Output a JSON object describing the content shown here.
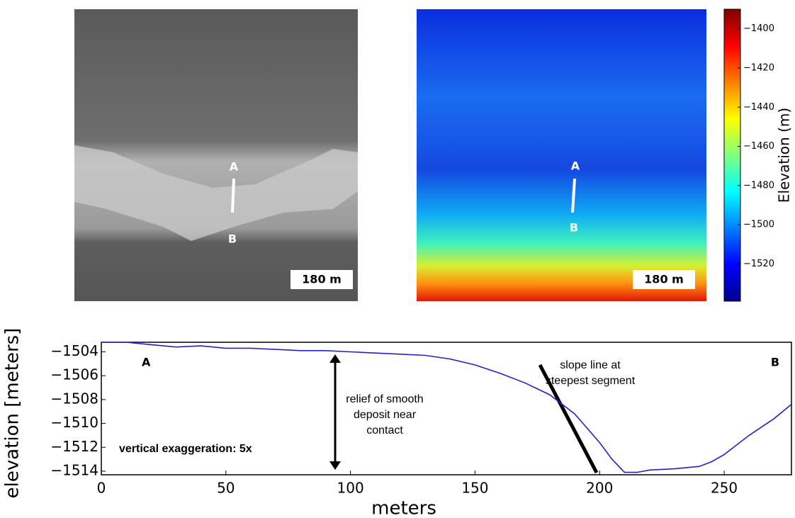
{
  "images": [
    {
      "point_a": "A",
      "point_b": "B",
      "scale_bar": "180 m"
    },
    {
      "point_a": "A",
      "point_b": "B",
      "scale_bar": "180 m"
    }
  ],
  "chart_data": [
    {
      "type": "colorbar",
      "label": "Elevation (m)",
      "colormap": "jet",
      "ylim": [
        -1539,
        -1390
      ],
      "yticks": [
        {
          "value": -1400,
          "label": "−1400"
        },
        {
          "value": -1420,
          "label": "−1420"
        },
        {
          "value": -1440,
          "label": "−1440"
        },
        {
          "value": -1460,
          "label": "−1460"
        },
        {
          "value": -1480,
          "label": "−1480"
        },
        {
          "value": -1500,
          "label": "−1500"
        },
        {
          "value": -1520,
          "label": "−1520"
        }
      ]
    },
    {
      "type": "line",
      "xlabel": "meters",
      "ylabel": "elevation [meters]",
      "color": "#2222cc",
      "x": [
        0,
        10,
        20,
        30,
        40,
        50,
        60,
        70,
        80,
        90,
        100,
        110,
        120,
        130,
        140,
        150,
        160,
        170,
        180,
        190,
        200,
        205,
        210,
        215,
        220,
        230,
        240,
        245,
        250,
        260,
        270,
        277
      ],
      "y": [
        -1503.2,
        -1503.2,
        -1503.4,
        -1503.6,
        -1503.5,
        -1503.7,
        -1503.7,
        -1503.8,
        -1503.9,
        -1503.9,
        -1504.0,
        -1504.1,
        -1504.2,
        -1504.3,
        -1504.6,
        -1505.1,
        -1505.8,
        -1506.6,
        -1507.6,
        -1509.2,
        -1511.6,
        -1513.0,
        -1514.1,
        -1514.1,
        -1513.9,
        -1513.8,
        -1513.6,
        -1513.2,
        -1512.6,
        -1511.0,
        -1509.6,
        -1508.4
      ],
      "xlim": [
        0,
        277
      ],
      "ylim": [
        -1514.3,
        -1503.2
      ],
      "xticks": [
        0,
        50,
        100,
        150,
        200,
        250
      ],
      "yticks": [
        {
          "value": -1504,
          "label": "−1504"
        },
        {
          "value": -1506,
          "label": "−1506"
        },
        {
          "value": -1508,
          "label": "−1508"
        },
        {
          "value": -1510,
          "label": "−1510"
        },
        {
          "value": -1512,
          "label": "−1512"
        },
        {
          "value": -1514,
          "label": "−1514"
        }
      ],
      "annotations": {
        "point_a": "A",
        "point_b": "B",
        "relief": "relief of smooth deposit near contact",
        "slope": "slope line at steepest segment",
        "exaggeration": "vertical exaggeration: 5x"
      }
    }
  ]
}
